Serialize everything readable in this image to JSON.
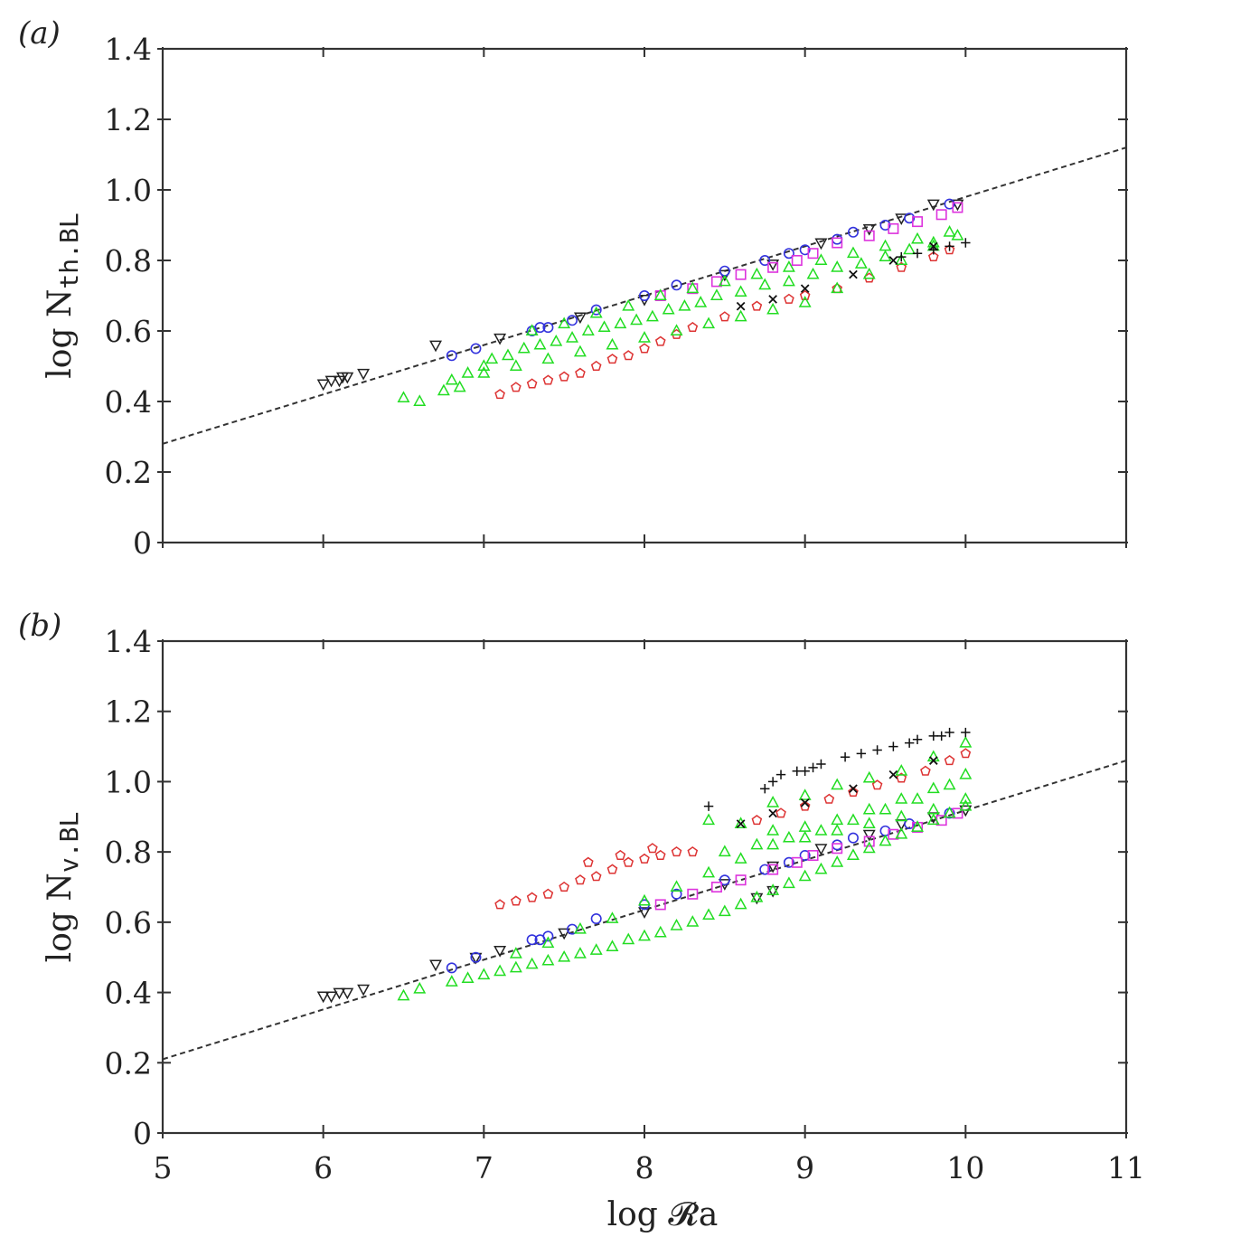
{
  "chart_data": [
    {
      "type": "scatter",
      "panel_label": "(a)",
      "ylabel": {
        "main": "log N",
        "sub": "th.BL"
      },
      "xlabel": "",
      "xlim": [
        5,
        11
      ],
      "ylim": [
        0,
        1.4
      ],
      "x_ticks": [
        5,
        6,
        7,
        8,
        9,
        10,
        11
      ],
      "x_tick_labels": [
        "",
        "",
        "",
        "",
        "",
        "",
        ""
      ],
      "y_ticks": [
        0,
        0.2,
        0.4,
        0.6,
        0.8,
        1.0,
        1.2,
        1.4
      ],
      "y_tick_labels": [
        "0",
        "0.2",
        "0.4",
        "0.6",
        "0.8",
        "1.0",
        "1.2",
        "1.4"
      ],
      "grid": false,
      "fit_line": {
        "x": [
          5,
          11
        ],
        "y": [
          0.28,
          1.12
        ]
      },
      "series": [
        {
          "marker": "triangle-down",
          "color": "#222222",
          "x": [
            6.0,
            6.05,
            6.1,
            6.12,
            6.15,
            6.25,
            6.7,
            7.1,
            7.6,
            8.0,
            8.5,
            8.8,
            9.1,
            9.4,
            9.6,
            9.8,
            9.95
          ],
          "y": [
            0.45,
            0.46,
            0.46,
            0.47,
            0.47,
            0.48,
            0.56,
            0.58,
            0.64,
            0.69,
            0.76,
            0.79,
            0.85,
            0.89,
            0.92,
            0.96,
            0.96
          ]
        },
        {
          "marker": "circle",
          "color": "#3333dd",
          "x": [
            6.8,
            6.95,
            7.3,
            7.35,
            7.4,
            7.55,
            7.7,
            8.0,
            8.2,
            8.5,
            8.75,
            8.9,
            9.0,
            9.2,
            9.3,
            9.5,
            9.65,
            9.9
          ],
          "y": [
            0.53,
            0.55,
            0.6,
            0.61,
            0.61,
            0.63,
            0.66,
            0.7,
            0.73,
            0.77,
            0.8,
            0.82,
            0.83,
            0.86,
            0.88,
            0.9,
            0.92,
            0.96
          ]
        },
        {
          "marker": "square",
          "color": "#dd33dd",
          "x": [
            8.1,
            8.3,
            8.45,
            8.6,
            8.8,
            8.95,
            9.05,
            9.2,
            9.4,
            9.55,
            9.7,
            9.85,
            9.95
          ],
          "y": [
            0.7,
            0.72,
            0.74,
            0.76,
            0.78,
            0.8,
            0.82,
            0.85,
            0.87,
            0.89,
            0.91,
            0.93,
            0.95
          ]
        },
        {
          "marker": "pentagon",
          "color": "#dd3333",
          "x": [
            7.1,
            7.2,
            7.3,
            7.4,
            7.5,
            7.6,
            7.7,
            7.8,
            7.9,
            8.0,
            8.1,
            8.2,
            8.3,
            8.5,
            8.7,
            8.9,
            9.0,
            9.2,
            9.4,
            9.6,
            9.8,
            9.9
          ],
          "y": [
            0.42,
            0.44,
            0.45,
            0.46,
            0.47,
            0.48,
            0.5,
            0.52,
            0.53,
            0.55,
            0.57,
            0.59,
            0.61,
            0.64,
            0.67,
            0.69,
            0.7,
            0.72,
            0.75,
            0.78,
            0.81,
            0.83
          ]
        },
        {
          "marker": "triangle-up",
          "color": "#22dd22",
          "x": [
            6.5,
            6.6,
            6.75,
            6.85,
            6.9,
            7.0,
            7.05,
            7.15,
            7.25,
            7.35,
            7.45,
            7.55,
            7.65,
            7.75,
            7.85,
            7.95,
            8.05,
            8.15,
            8.25,
            8.35,
            8.45,
            8.6,
            8.75,
            8.9,
            9.05,
            9.2,
            9.35,
            9.5,
            9.65,
            9.8,
            9.95,
            7.3,
            7.5,
            7.7,
            7.9,
            8.1,
            8.3,
            8.5,
            8.7,
            8.9,
            9.1,
            9.3,
            9.5,
            9.7,
            9.9,
            6.8,
            7.0,
            7.2,
            7.4,
            7.6,
            7.8,
            8.0,
            8.2,
            8.4,
            8.6,
            8.8,
            9.0,
            9.2,
            9.4,
            9.6,
            9.8
          ],
          "y": [
            0.41,
            0.4,
            0.43,
            0.44,
            0.48,
            0.5,
            0.52,
            0.53,
            0.55,
            0.56,
            0.57,
            0.58,
            0.6,
            0.61,
            0.62,
            0.63,
            0.64,
            0.66,
            0.67,
            0.68,
            0.7,
            0.71,
            0.73,
            0.74,
            0.76,
            0.78,
            0.79,
            0.81,
            0.83,
            0.85,
            0.87,
            0.6,
            0.62,
            0.65,
            0.67,
            0.7,
            0.72,
            0.74,
            0.76,
            0.78,
            0.8,
            0.82,
            0.84,
            0.86,
            0.88,
            0.46,
            0.48,
            0.5,
            0.52,
            0.54,
            0.56,
            0.58,
            0.6,
            0.62,
            0.64,
            0.66,
            0.68,
            0.72,
            0.76,
            0.8,
            0.84
          ]
        },
        {
          "marker": "x",
          "color": "#111111",
          "x": [
            8.6,
            8.8,
            9.0,
            9.3,
            9.55,
            9.8
          ],
          "y": [
            0.67,
            0.69,
            0.72,
            0.76,
            0.8,
            0.84
          ]
        },
        {
          "marker": "plus",
          "color": "#111111",
          "x": [
            9.6,
            9.7,
            9.8,
            9.9,
            10.0
          ],
          "y": [
            0.81,
            0.82,
            0.83,
            0.84,
            0.85
          ]
        }
      ]
    },
    {
      "type": "scatter",
      "panel_label": "(b)",
      "ylabel": {
        "main": "log N",
        "sub": "v.BL"
      },
      "xlabel": "log 𝓡a",
      "xlim": [
        5,
        11
      ],
      "ylim": [
        0,
        1.4
      ],
      "x_ticks": [
        5,
        6,
        7,
        8,
        9,
        10,
        11
      ],
      "x_tick_labels": [
        "5",
        "6",
        "7",
        "8",
        "9",
        "10",
        "11"
      ],
      "y_ticks": [
        0,
        0.2,
        0.4,
        0.6,
        0.8,
        1.0,
        1.2,
        1.4
      ],
      "y_tick_labels": [
        "0",
        "0.2",
        "0.4",
        "0.6",
        "0.8",
        "1.0",
        "1.2",
        "1.4"
      ],
      "grid": false,
      "fit_line": {
        "x": [
          5,
          11
        ],
        "y": [
          0.21,
          1.06
        ]
      },
      "series": [
        {
          "marker": "triangle-down",
          "color": "#222222",
          "x": [
            6.0,
            6.05,
            6.1,
            6.15,
            6.25,
            6.7,
            6.95,
            7.1,
            7.5,
            8.0,
            8.5,
            8.8,
            9.1,
            9.4,
            9.6,
            9.8,
            10.0,
            8.7,
            8.8
          ],
          "y": [
            0.39,
            0.39,
            0.4,
            0.4,
            0.41,
            0.48,
            0.5,
            0.52,
            0.57,
            0.63,
            0.71,
            0.76,
            0.81,
            0.85,
            0.88,
            0.9,
            0.92,
            0.67,
            0.69
          ]
        },
        {
          "marker": "circle",
          "color": "#3333dd",
          "x": [
            6.8,
            6.95,
            7.3,
            7.35,
            7.4,
            7.55,
            7.7,
            8.0,
            8.2,
            8.5,
            8.75,
            8.9,
            9.0,
            9.2,
            9.3,
            9.5,
            9.65,
            9.9
          ],
          "y": [
            0.47,
            0.5,
            0.55,
            0.55,
            0.56,
            0.58,
            0.61,
            0.65,
            0.68,
            0.72,
            0.75,
            0.77,
            0.79,
            0.82,
            0.84,
            0.86,
            0.88,
            0.91
          ]
        },
        {
          "marker": "square",
          "color": "#dd33dd",
          "x": [
            8.1,
            8.3,
            8.45,
            8.6,
            8.8,
            8.95,
            9.05,
            9.2,
            9.4,
            9.55,
            9.7,
            9.85,
            9.95
          ],
          "y": [
            0.65,
            0.68,
            0.7,
            0.72,
            0.75,
            0.77,
            0.79,
            0.81,
            0.83,
            0.85,
            0.87,
            0.89,
            0.91
          ]
        },
        {
          "marker": "pentagon",
          "color": "#dd3333",
          "x": [
            7.1,
            7.2,
            7.3,
            7.4,
            7.5,
            7.6,
            7.7,
            7.8,
            7.9,
            8.0,
            8.1,
            8.2,
            8.3,
            7.65,
            7.85,
            8.05,
            8.7,
            8.85,
            9.0,
            9.15,
            9.3,
            9.45,
            9.6,
            9.75,
            9.9,
            10.0
          ],
          "y": [
            0.65,
            0.66,
            0.67,
            0.68,
            0.7,
            0.72,
            0.73,
            0.75,
            0.77,
            0.78,
            0.79,
            0.8,
            0.8,
            0.77,
            0.79,
            0.81,
            0.89,
            0.91,
            0.93,
            0.95,
            0.97,
            0.99,
            1.01,
            1.03,
            1.06,
            1.08
          ]
        },
        {
          "marker": "triangle-up",
          "color": "#22dd22",
          "x": [
            6.5,
            6.6,
            6.8,
            6.9,
            7.0,
            7.1,
            7.2,
            7.3,
            7.4,
            7.5,
            7.6,
            7.7,
            7.8,
            7.9,
            8.0,
            8.1,
            8.2,
            8.3,
            8.4,
            8.5,
            8.6,
            8.7,
            8.8,
            8.9,
            9.0,
            9.1,
            9.2,
            9.3,
            9.4,
            9.5,
            9.6,
            9.7,
            9.8,
            9.9,
            10.0,
            7.2,
            7.4,
            7.6,
            7.8,
            8.0,
            8.2,
            8.4,
            8.6,
            8.8,
            9.0,
            9.2,
            9.4,
            9.6,
            9.8,
            10.0,
            8.4,
            8.6,
            8.8,
            9.0,
            9.2,
            9.4,
            9.6,
            9.8,
            10.0,
            8.5,
            8.7,
            8.9,
            9.1,
            9.3,
            9.5,
            9.7,
            9.9,
            8.8,
            9.0,
            9.2,
            9.4,
            9.6,
            9.8,
            10.0
          ],
          "y": [
            0.39,
            0.41,
            0.43,
            0.44,
            0.45,
            0.46,
            0.47,
            0.48,
            0.49,
            0.5,
            0.51,
            0.52,
            0.53,
            0.55,
            0.56,
            0.57,
            0.59,
            0.6,
            0.62,
            0.63,
            0.65,
            0.67,
            0.69,
            0.71,
            0.73,
            0.75,
            0.77,
            0.79,
            0.81,
            0.83,
            0.85,
            0.87,
            0.89,
            0.91,
            0.93,
            0.51,
            0.54,
            0.58,
            0.61,
            0.66,
            0.7,
            0.74,
            0.78,
            0.82,
            0.84,
            0.86,
            0.88,
            0.9,
            0.92,
            0.95,
            0.89,
            0.88,
            0.86,
            0.87,
            0.89,
            0.92,
            0.95,
            0.98,
            1.02,
            0.8,
            0.82,
            0.84,
            0.86,
            0.89,
            0.92,
            0.95,
            0.99,
            0.94,
            0.96,
            0.99,
            1.01,
            1.03,
            1.07,
            1.11
          ]
        },
        {
          "marker": "x",
          "color": "#111111",
          "x": [
            8.6,
            8.8,
            9.0,
            9.3,
            9.55,
            9.8
          ],
          "y": [
            0.88,
            0.91,
            0.94,
            0.98,
            1.02,
            1.06
          ]
        },
        {
          "marker": "plus",
          "color": "#111111",
          "x": [
            8.4,
            8.75,
            8.8,
            8.85,
            8.95,
            9.0,
            9.05,
            9.1,
            9.25,
            9.35,
            9.45,
            9.55,
            9.65,
            9.7,
            9.8,
            9.85,
            9.9,
            10.0
          ],
          "y": [
            0.93,
            0.98,
            1.0,
            1.02,
            1.03,
            1.03,
            1.04,
            1.05,
            1.07,
            1.08,
            1.09,
            1.1,
            1.11,
            1.12,
            1.13,
            1.13,
            1.14,
            1.14
          ]
        }
      ]
    }
  ]
}
